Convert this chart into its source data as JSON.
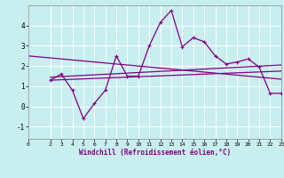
{
  "xlabel": "Windchill (Refroidissement éolien,°C)",
  "background_color": "#c8eef0",
  "grid_color": "#b0dde0",
  "line_color": "#800080",
  "xlim": [
    0,
    23
  ],
  "ylim": [
    -1.6,
    5.0
  ],
  "yticks": [
    -1,
    0,
    1,
    2,
    3,
    4
  ],
  "x_ticks": [
    0,
    2,
    3,
    4,
    5,
    6,
    7,
    8,
    9,
    10,
    11,
    12,
    13,
    14,
    15,
    16,
    17,
    18,
    19,
    20,
    21,
    22,
    23
  ],
  "series1_x": [
    2,
    3,
    4,
    5,
    6,
    7,
    8,
    9,
    10,
    11,
    12,
    13,
    14,
    15,
    16,
    17,
    18,
    19,
    20,
    21,
    22,
    23
  ],
  "series1_y": [
    1.3,
    1.6,
    0.8,
    -0.6,
    0.15,
    0.8,
    2.5,
    1.5,
    1.5,
    3.0,
    4.15,
    4.75,
    2.95,
    3.4,
    3.2,
    2.5,
    2.1,
    2.2,
    2.35,
    1.95,
    0.65,
    0.65
  ],
  "trend1_x": [
    0,
    23
  ],
  "trend1_y": [
    2.5,
    1.35
  ],
  "trend2_x": [
    2,
    23
  ],
  "trend2_y": [
    1.3,
    1.75
  ],
  "trend3_x": [
    2,
    23
  ],
  "trend3_y": [
    1.45,
    2.05
  ]
}
